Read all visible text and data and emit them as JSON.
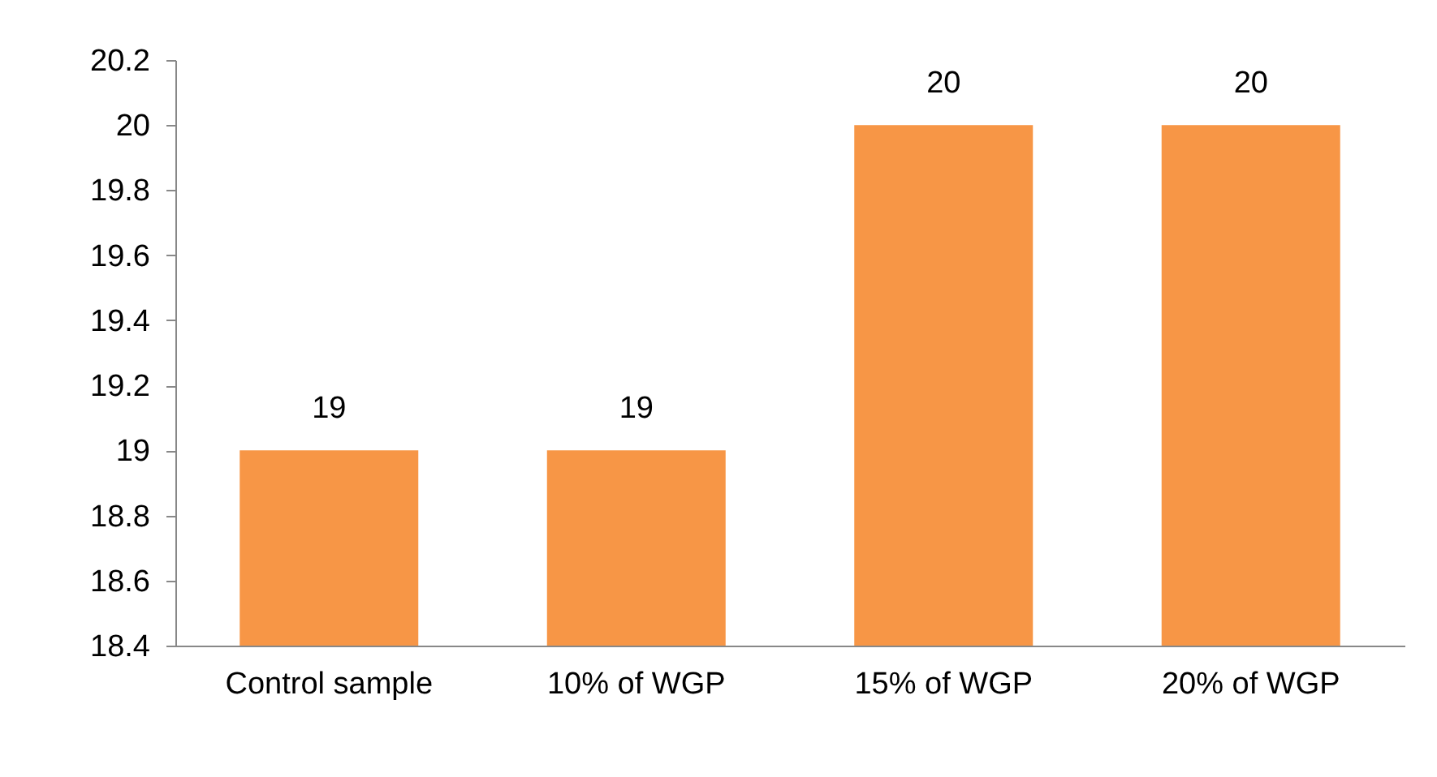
{
  "chart_data": {
    "type": "bar",
    "categories": [
      "Control sample",
      "10% of WGP",
      "15% of WGP",
      "20% of WGP"
    ],
    "values": [
      19,
      19,
      20,
      20
    ],
    "color": "#f79646",
    "ylim": [
      18.4,
      20.2
    ],
    "yticks": [
      18.4,
      18.6,
      18.8,
      19,
      19.2,
      19.4,
      19.6,
      19.8,
      20,
      20.2
    ],
    "grid": false,
    "data_labels": true
  }
}
